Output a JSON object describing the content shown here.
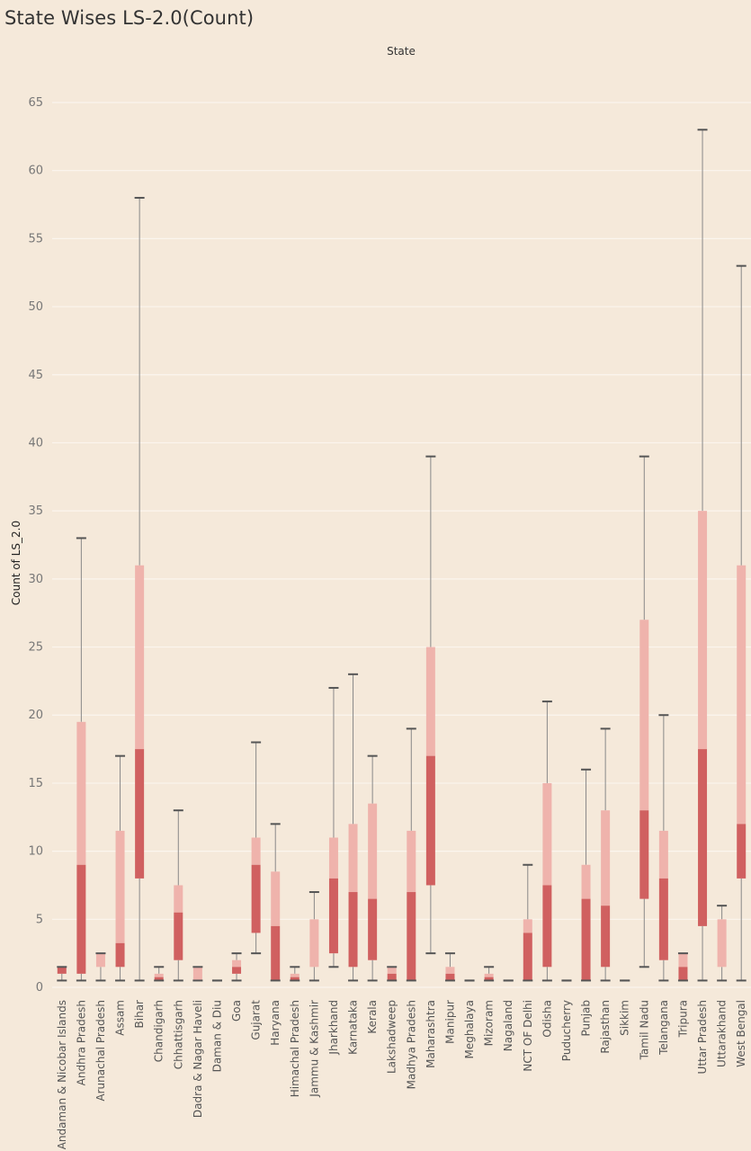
{
  "title": "State Wises LS-2.0(Count)",
  "column_header": "State",
  "colors": {
    "background": "#f5e9da",
    "lower_box": "#d06060",
    "upper_box": "#efb3ac",
    "whisker": "#888888",
    "whisker_cap": "#555555",
    "grid": "#fbf5ee"
  },
  "chart_data": {
    "type": "box",
    "title": "State Wises LS-2.0(Count)",
    "xlabel": "State",
    "ylabel": "Count of LS_2.0",
    "ylim": [
      0,
      65
    ],
    "yticks": [
      0,
      5,
      10,
      15,
      20,
      25,
      30,
      35,
      40,
      45,
      50,
      55,
      60,
      65
    ],
    "grid": true,
    "categories": [
      "Andaman & Nicobar Islands",
      "Andhra Pradesh",
      "Arunachal Pradesh",
      "Assam",
      "Bihar",
      "Chandigarh",
      "Chhattisgarh",
      "Dadra & Nagar Haveli",
      "Daman & Diu",
      "Goa",
      "Gujarat",
      "Haryana",
      "Himachal Pradesh",
      "Jammu & Kashmir",
      "Jharkhand",
      "Karnataka",
      "Kerala",
      "Lakshadweep",
      "Madhya Pradesh",
      "Maharashtra",
      "Manipur",
      "Meghalaya",
      "Mizoram",
      "Nagaland",
      "NCT OF Delhi",
      "Odisha",
      "Puducherry",
      "Punjab",
      "Rajasthan",
      "Sikkim",
      "Tamil Nadu",
      "Telangana",
      "Tripura",
      "Uttar Pradesh",
      "Uttarakhand",
      "West Bengal"
    ],
    "series": [
      {
        "min": 0.5,
        "q1": 1.0,
        "median": 1.5,
        "q3": 1.5,
        "max": 1.5
      },
      {
        "min": 0.5,
        "q1": 1.0,
        "median": 9.0,
        "q3": 19.5,
        "max": 33.0
      },
      {
        "min": 0.5,
        "q1": 1.5,
        "median": 1.5,
        "q3": 2.5,
        "max": 2.5
      },
      {
        "min": 0.5,
        "q1": 1.5,
        "median": 3.25,
        "q3": 11.5,
        "max": 17.0
      },
      {
        "min": 0.5,
        "q1": 8.0,
        "median": 17.5,
        "q3": 31.0,
        "max": 58.0
      },
      {
        "min": 0.5,
        "q1": 0.5,
        "median": 0.75,
        "q3": 1.0,
        "max": 1.5
      },
      {
        "min": 0.5,
        "q1": 2.0,
        "median": 5.5,
        "q3": 7.5,
        "max": 13.0
      },
      {
        "min": 0.5,
        "q1": 0.5,
        "median": 0.5,
        "q3": 1.5,
        "max": 1.5
      },
      {
        "min": 0.5,
        "q1": 0.5,
        "median": 0.5,
        "q3": 0.5,
        "max": 0.5
      },
      {
        "min": 0.5,
        "q1": 1.0,
        "median": 1.5,
        "q3": 2.0,
        "max": 2.5
      },
      {
        "min": 2.5,
        "q1": 4.0,
        "median": 9.0,
        "q3": 11.0,
        "max": 18.0
      },
      {
        "min": 0.5,
        "q1": 0.5,
        "median": 4.5,
        "q3": 8.5,
        "max": 12.0
      },
      {
        "min": 0.5,
        "q1": 0.5,
        "median": 0.75,
        "q3": 1.0,
        "max": 1.5
      },
      {
        "min": 0.5,
        "q1": 1.5,
        "median": 1.5,
        "q3": 5.0,
        "max": 7.0
      },
      {
        "min": 1.5,
        "q1": 2.5,
        "median": 8.0,
        "q3": 11.0,
        "max": 22.0
      },
      {
        "min": 0.5,
        "q1": 1.5,
        "median": 7.0,
        "q3": 12.0,
        "max": 23.0
      },
      {
        "min": 0.5,
        "q1": 2.0,
        "median": 6.5,
        "q3": 13.5,
        "max": 17.0
      },
      {
        "min": 0.5,
        "q1": 0.5,
        "median": 1.0,
        "q3": 1.5,
        "max": 1.5
      },
      {
        "min": 0.5,
        "q1": 0.5,
        "median": 7.0,
        "q3": 11.5,
        "max": 19.0
      },
      {
        "min": 2.5,
        "q1": 7.5,
        "median": 17.0,
        "q3": 25.0,
        "max": 39.0
      },
      {
        "min": 0.5,
        "q1": 0.5,
        "median": 1.0,
        "q3": 1.5,
        "max": 2.5
      },
      {
        "min": 0.5,
        "q1": 0.5,
        "median": 0.5,
        "q3": 0.5,
        "max": 0.5
      },
      {
        "min": 0.5,
        "q1": 0.5,
        "median": 0.75,
        "q3": 1.0,
        "max": 1.5
      },
      {
        "min": 0.5,
        "q1": 0.5,
        "median": 0.5,
        "q3": 0.5,
        "max": 0.5
      },
      {
        "min": 0.5,
        "q1": 0.5,
        "median": 4.0,
        "q3": 5.0,
        "max": 9.0
      },
      {
        "min": 0.5,
        "q1": 1.5,
        "median": 7.5,
        "q3": 15.0,
        "max": 21.0
      },
      {
        "min": 0.5,
        "q1": 0.5,
        "median": 0.5,
        "q3": 0.5,
        "max": 0.5
      },
      {
        "min": 0.5,
        "q1": 0.5,
        "median": 6.5,
        "q3": 9.0,
        "max": 16.0
      },
      {
        "min": 0.5,
        "q1": 1.5,
        "median": 6.0,
        "q3": 13.0,
        "max": 19.0
      },
      {
        "min": 0.5,
        "q1": 0.5,
        "median": 0.5,
        "q3": 0.5,
        "max": 0.5
      },
      {
        "min": 1.5,
        "q1": 6.5,
        "median": 13.0,
        "q3": 27.0,
        "max": 39.0
      },
      {
        "min": 0.5,
        "q1": 2.0,
        "median": 8.0,
        "q3": 11.5,
        "max": 20.0
      },
      {
        "min": 0.5,
        "q1": 0.5,
        "median": 1.5,
        "q3": 2.5,
        "max": 2.5
      },
      {
        "min": 0.5,
        "q1": 4.5,
        "median": 17.5,
        "q3": 35.0,
        "max": 63.0
      },
      {
        "min": 0.5,
        "q1": 1.5,
        "median": 1.5,
        "q3": 5.0,
        "max": 6.0
      },
      {
        "min": 0.5,
        "q1": 8.0,
        "median": 12.0,
        "q3": 31.0,
        "max": 53.0
      }
    ]
  }
}
